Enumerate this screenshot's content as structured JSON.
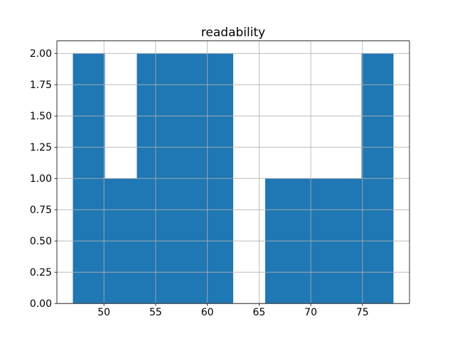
{
  "chart_data": {
    "type": "bar",
    "subtype": "histogram",
    "title": "readability",
    "xlabel": "",
    "ylabel": "",
    "bin_edges": [
      47.0,
      50.1,
      53.2,
      56.3,
      59.4,
      62.5,
      65.6,
      68.7,
      71.8,
      74.9,
      78.0
    ],
    "counts": [
      2,
      1,
      2,
      2,
      2,
      0,
      1,
      1,
      1,
      2
    ],
    "xlim": [
      45.45,
      79.55
    ],
    "ylim": [
      0,
      2.1
    ],
    "xticks": [
      50,
      55,
      60,
      65,
      70,
      75
    ],
    "xtick_labels": [
      "50",
      "55",
      "60",
      "65",
      "70",
      "75"
    ],
    "yticks": [
      0,
      0.25,
      0.5,
      0.75,
      1.0,
      1.25,
      1.5,
      1.75,
      2.0
    ],
    "ytick_labels": [
      "0.00",
      "0.25",
      "0.50",
      "0.75",
      "1.00",
      "1.25",
      "1.50",
      "1.75",
      "2.00"
    ],
    "grid": true,
    "grid_above_bars": true,
    "legend": "none",
    "colors": {
      "bar": "#1f77b4",
      "grid": "#b0b0b0",
      "spine": "#000000",
      "background": "#ffffff"
    }
  }
}
